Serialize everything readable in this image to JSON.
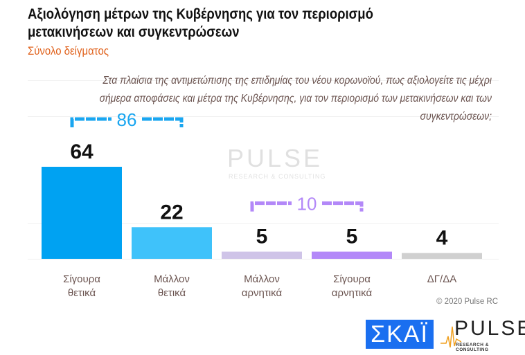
{
  "title": "Αξιολόγηση μέτρων της Κυβέρνησης για τον περιορισμό μετακινήσεων και συγκεντρώσεων",
  "subtitle": "Σύνολο δείγματος",
  "question": "Στα πλαίσια της αντιμετώπισης της επιδημίας του νέου κορωνοϊού, πως αξιολογείτε τις μέχρι σήμερα αποφάσεις και μέτρα της Κυβέρνησης, για τον περιορισμό των μετακινήσεων και των συγκεντρώσεων;",
  "copyright": "© 2020 Pulse RC",
  "logos": {
    "skai": "ΣΚΑΪ",
    "pulse": "PULSE",
    "pulse_tag": "RESEARCH & CONSULTING"
  },
  "chart_data": {
    "type": "bar",
    "categories": [
      "Σίγουρα θετικά",
      "Μάλλον θετικά",
      "Μάλλον αρνητικά",
      "Σίγουρα αρνητικά",
      "ΔΓ/ΔΑ"
    ],
    "values": [
      64,
      22,
      5,
      5,
      4
    ],
    "colors": [
      "#00a2f2",
      "#3fc2fa",
      "#cfc4e8",
      "#b388f8",
      "#d0d0d0"
    ],
    "groups": [
      {
        "label": "86",
        "from": 0,
        "to": 1,
        "color": "#1aa6f0"
      },
      {
        "label": "10",
        "from": 2,
        "to": 3,
        "color": "#b388f8"
      }
    ],
    "ylim": [
      0,
      64
    ]
  }
}
